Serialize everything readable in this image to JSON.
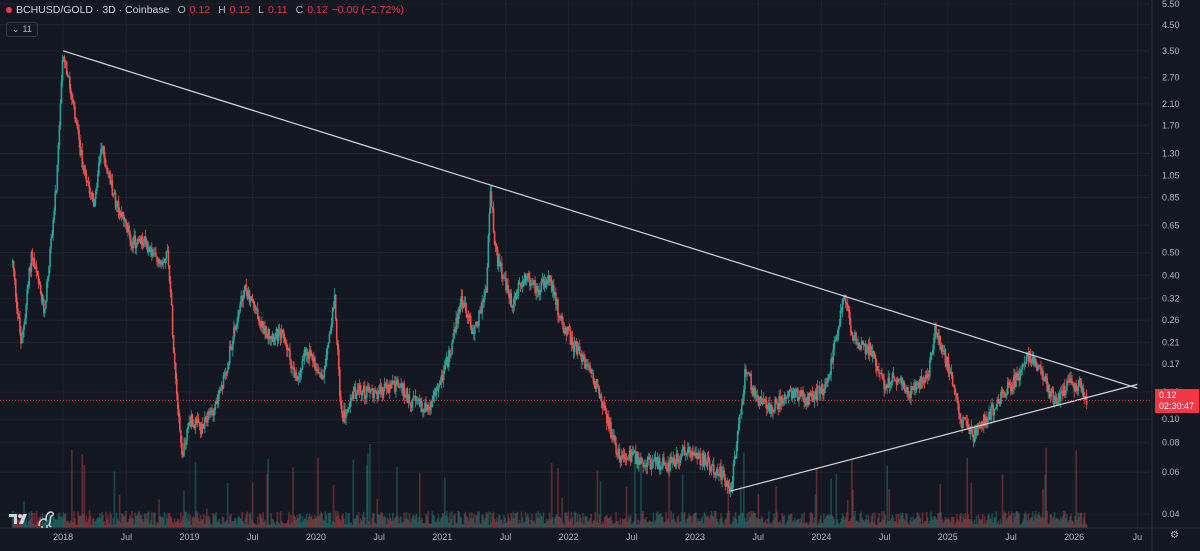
{
  "header": {
    "symbol": "BCHUSD/GOLD · 3D · Coinbase",
    "open_label": "O",
    "open": "0.12",
    "high_label": "H",
    "high": "0.12",
    "low_label": "L",
    "low": "0.11",
    "close_label": "C",
    "close": "0.12",
    "change": "−0.00 (−2.72%)"
  },
  "indicator_toggle": {
    "count": "11"
  },
  "price_label": {
    "value": "0.12",
    "countdown": "02:30:47"
  },
  "colors": {
    "background": "#131722",
    "up": "#26a69a",
    "down": "#ef5350",
    "trendline": "#d1d4dc",
    "price_line": "#f23645"
  },
  "icons": {
    "logo": "tradingview-logo-icon",
    "mascot": "dino-icon",
    "settings": "gear-icon",
    "collapse": "chevron-down-icon"
  },
  "chart_data": {
    "type": "candlestick",
    "title": "BCHUSD/GOLD · 3D · Coinbase",
    "yscale": "log",
    "y_ticks": [
      "5.50",
      "4.50",
      "3.50",
      "2.70",
      "2.10",
      "1.70",
      "1.30",
      "1.05",
      "0.85",
      "0.65",
      "0.50",
      "0.40",
      "0.32",
      "0.26",
      "0.21",
      "0.17",
      "0.13",
      "0.10",
      "0.08",
      "0.06",
      "0.04"
    ],
    "x_ticks": [
      "2018",
      "Jul",
      "2019",
      "Jul",
      "2020",
      "Jul",
      "2021",
      "Jul",
      "2022",
      "Jul",
      "2023",
      "Jul",
      "2024",
      "Jul",
      "2025",
      "Jul",
      "2026",
      "Ju"
    ],
    "x_tick_years": [
      2018,
      2018.5,
      2019,
      2019.5,
      2020,
      2020.5,
      2021,
      2021.5,
      2022,
      2022.5,
      2023,
      2023.5,
      2024,
      2024.5,
      2025,
      2025.5,
      2026,
      2026.5
    ],
    "x_range": [
      2017.5,
      2026.6
    ],
    "y_range": [
      0.035,
      5.5
    ],
    "price_path": [
      [
        2017.6,
        0.45
      ],
      [
        2017.67,
        0.2
      ],
      [
        2017.75,
        0.5
      ],
      [
        2017.85,
        0.28
      ],
      [
        2017.95,
        1.0
      ],
      [
        2018.0,
        3.5
      ],
      [
        2018.08,
        2.0
      ],
      [
        2018.15,
        1.2
      ],
      [
        2018.25,
        0.8
      ],
      [
        2018.3,
        1.4
      ],
      [
        2018.42,
        0.8
      ],
      [
        2018.55,
        0.55
      ],
      [
        2018.65,
        0.55
      ],
      [
        2018.75,
        0.45
      ],
      [
        2018.83,
        0.5
      ],
      [
        2018.88,
        0.18
      ],
      [
        2018.94,
        0.07
      ],
      [
        2019.0,
        0.1
      ],
      [
        2019.1,
        0.09
      ],
      [
        2019.25,
        0.13
      ],
      [
        2019.4,
        0.3
      ],
      [
        2019.45,
        0.35
      ],
      [
        2019.6,
        0.23
      ],
      [
        2019.75,
        0.22
      ],
      [
        2019.85,
        0.14
      ],
      [
        2019.92,
        0.2
      ],
      [
        2020.05,
        0.15
      ],
      [
        2020.15,
        0.32
      ],
      [
        2020.2,
        0.1
      ],
      [
        2020.3,
        0.13
      ],
      [
        2020.5,
        0.13
      ],
      [
        2020.65,
        0.14
      ],
      [
        2020.75,
        0.12
      ],
      [
        2020.9,
        0.11
      ],
      [
        2021.05,
        0.18
      ],
      [
        2021.15,
        0.32
      ],
      [
        2021.25,
        0.23
      ],
      [
        2021.35,
        0.35
      ],
      [
        2021.38,
        0.95
      ],
      [
        2021.42,
        0.5
      ],
      [
        2021.55,
        0.3
      ],
      [
        2021.65,
        0.4
      ],
      [
        2021.75,
        0.35
      ],
      [
        2021.85,
        0.38
      ],
      [
        2021.95,
        0.25
      ],
      [
        2022.05,
        0.2
      ],
      [
        2022.2,
        0.15
      ],
      [
        2022.3,
        0.1
      ],
      [
        2022.4,
        0.07
      ],
      [
        2022.5,
        0.07
      ],
      [
        2022.65,
        0.065
      ],
      [
        2022.8,
        0.065
      ],
      [
        2022.95,
        0.075
      ],
      [
        2023.1,
        0.065
      ],
      [
        2023.2,
        0.06
      ],
      [
        2023.28,
        0.05
      ],
      [
        2023.32,
        0.07
      ],
      [
        2023.4,
        0.16
      ],
      [
        2023.5,
        0.12
      ],
      [
        2023.6,
        0.11
      ],
      [
        2023.75,
        0.13
      ],
      [
        2023.9,
        0.12
      ],
      [
        2024.05,
        0.14
      ],
      [
        2024.12,
        0.23
      ],
      [
        2024.18,
        0.32
      ],
      [
        2024.25,
        0.22
      ],
      [
        2024.4,
        0.19
      ],
      [
        2024.5,
        0.14
      ],
      [
        2024.6,
        0.15
      ],
      [
        2024.7,
        0.13
      ],
      [
        2024.85,
        0.16
      ],
      [
        2024.9,
        0.24
      ],
      [
        2025.0,
        0.17
      ],
      [
        2025.1,
        0.1
      ],
      [
        2025.2,
        0.085
      ],
      [
        2025.3,
        0.1
      ],
      [
        2025.45,
        0.13
      ],
      [
        2025.55,
        0.15
      ],
      [
        2025.65,
        0.19
      ],
      [
        2025.75,
        0.15
      ],
      [
        2025.85,
        0.12
      ],
      [
        2025.95,
        0.14
      ],
      [
        2026.05,
        0.14
      ],
      [
        2026.1,
        0.12
      ]
    ],
    "trendlines": [
      {
        "from": [
          2018.0,
          3.5
        ],
        "to": [
          2026.5,
          0.135
        ]
      },
      {
        "from": [
          2023.28,
          0.05
        ],
        "to": [
          2026.5,
          0.14
        ]
      }
    ],
    "last_price": 0.12,
    "last_price_change_pct": -2.72
  }
}
